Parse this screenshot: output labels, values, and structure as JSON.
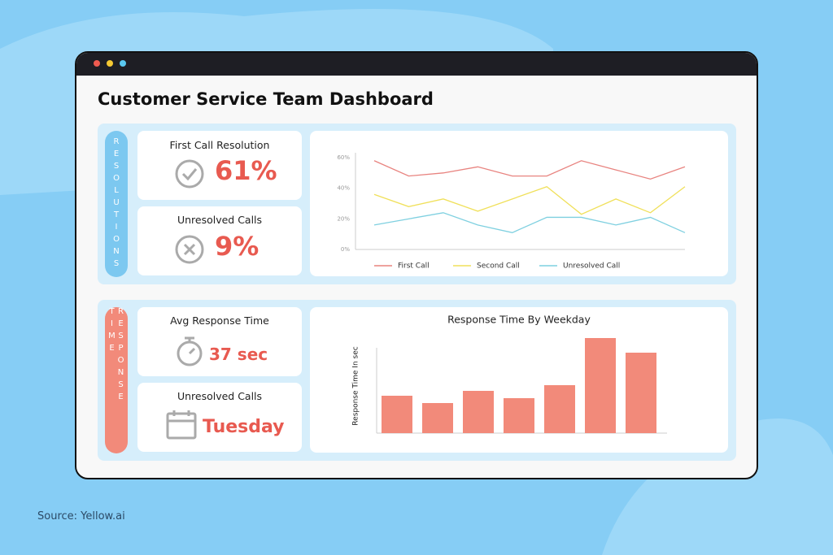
{
  "header": {
    "title": "Customer Service Team Dashboard"
  },
  "sections": [
    {
      "label": "RESOLUTIONS",
      "cards": [
        {
          "title": "First Call Resolution",
          "value": "61%"
        },
        {
          "title": "Unresolved Calls",
          "value": "9%"
        }
      ]
    },
    {
      "label": "RESPONSE TIME",
      "cards": [
        {
          "title": "Avg Response Time",
          "value": "37 sec"
        },
        {
          "title": "Unresolved Calls",
          "value": "Tuesday"
        }
      ]
    }
  ],
  "chart_data": [
    {
      "type": "line",
      "categories": [
        null,
        null,
        null,
        null,
        null,
        null,
        null,
        null,
        null,
        null
      ],
      "series": [
        {
          "name": "First Call",
          "color": "#e8837f",
          "values": [
            58,
            48,
            50,
            54,
            48,
            48,
            58,
            52,
            46,
            54
          ]
        },
        {
          "name": "Second Call",
          "color": "#f0e05a",
          "values": [
            36,
            28,
            33,
            25,
            33,
            41,
            23,
            33,
            24,
            41
          ]
        },
        {
          "name": "Unresolved Call",
          "color": "#7fd0e0",
          "values": [
            16,
            20,
            24,
            16,
            11,
            21,
            21,
            16,
            21,
            11
          ]
        }
      ],
      "ylim": [
        0,
        60
      ],
      "yticks": [
        {
          "value": 0,
          "label": "0%"
        },
        {
          "value": 20,
          "label": "20%"
        },
        {
          "value": 40,
          "label": "40%"
        },
        {
          "value": 60,
          "label": "60%"
        }
      ],
      "grid": false,
      "legend": "bottom"
    },
    {
      "type": "bar",
      "title": "Response Time By Weekday",
      "y_label": "Response Time In sec",
      "categories": [
        null,
        null,
        null,
        null,
        null,
        null,
        null
      ],
      "values": [
        46,
        37,
        52,
        43,
        59,
        117,
        99
      ],
      "color": "#f28a7a",
      "ylim": [
        0,
        120
      ]
    }
  ],
  "footer": {
    "source": "Source: Yellow.ai"
  }
}
